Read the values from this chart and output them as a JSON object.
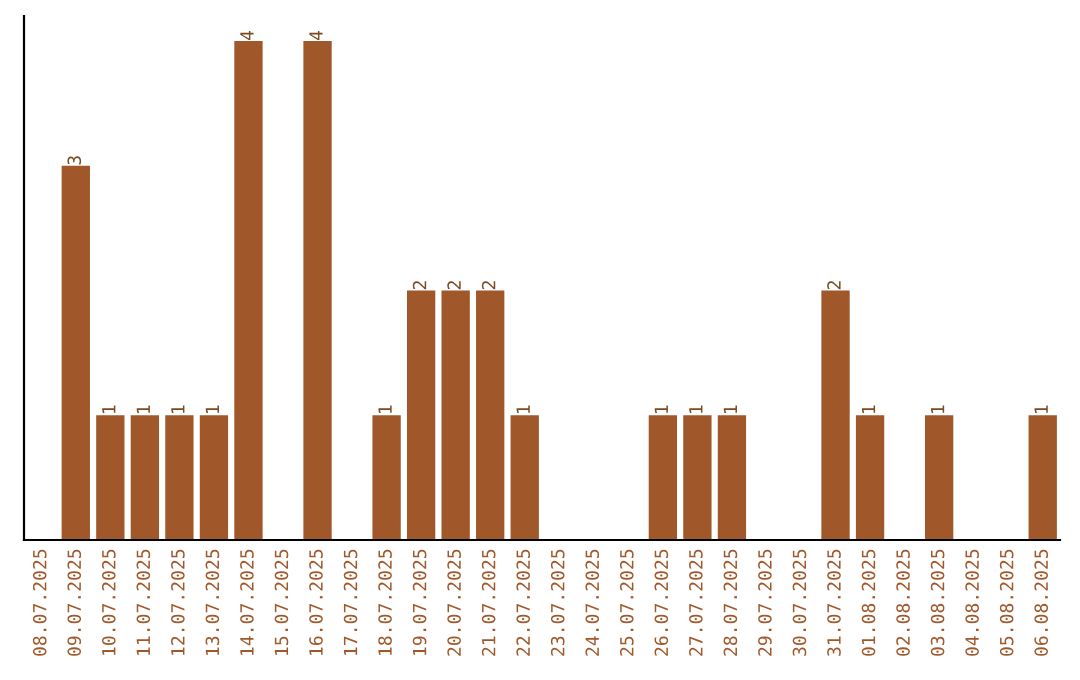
{
  "chart_data": {
    "type": "bar",
    "categories": [
      "08.07.2025",
      "09.07.2025",
      "10.07.2025",
      "11.07.2025",
      "12.07.2025",
      "13.07.2025",
      "14.07.2025",
      "15.07.2025",
      "16.07.2025",
      "17.07.2025",
      "18.07.2025",
      "19.07.2025",
      "20.07.2025",
      "21.07.2025",
      "22.07.2025",
      "23.07.2025",
      "24.07.2025",
      "25.07.2025",
      "26.07.2025",
      "27.07.2025",
      "28.07.2025",
      "29.07.2025",
      "30.07.2025",
      "31.07.2025",
      "01.08.2025",
      "02.08.2025",
      "03.08.2025",
      "04.08.2025",
      "05.08.2025",
      "06.08.2025"
    ],
    "values": [
      0,
      3,
      1,
      1,
      1,
      1,
      4,
      0,
      4,
      0,
      1,
      2,
      2,
      2,
      1,
      0,
      0,
      0,
      1,
      1,
      1,
      0,
      0,
      2,
      1,
      0,
      1,
      0,
      0,
      1
    ],
    "value_labels": [
      null,
      "3",
      "1",
      "1",
      "1",
      "1",
      "4",
      null,
      "4",
      null,
      "1",
      "2",
      "2",
      "2",
      "1",
      null,
      null,
      null,
      "1",
      "1",
      "1",
      null,
      null,
      "2",
      "1",
      null,
      "1",
      null,
      null,
      "1"
    ],
    "color": "#a0582a",
    "tick_labels": "x",
    "grid": false,
    "legend": false
  }
}
